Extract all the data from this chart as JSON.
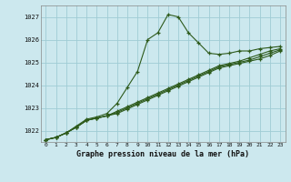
{
  "title": "Graphe pression niveau de la mer (hPa)",
  "bg_color": "#cce8ee",
  "line_color": "#2d5a1b",
  "grid_color": "#9fccd4",
  "ylim": [
    1021.5,
    1027.5
  ],
  "xlim": [
    -0.5,
    23.5
  ],
  "xtick_labels": [
    "0",
    "1",
    "2",
    "3",
    "4",
    "5",
    "6",
    "7",
    "8",
    "9",
    "10",
    "11",
    "12",
    "13",
    "14",
    "15",
    "16",
    "17",
    "18",
    "19",
    "20",
    "21",
    "22",
    "23"
  ],
  "ytick_labels": [
    "1022",
    "1023",
    "1024",
    "1025",
    "1026",
    "1027"
  ],
  "ytick_vals": [
    1022,
    1023,
    1024,
    1025,
    1026,
    1027
  ],
  "series": [
    [
      1021.6,
      1021.7,
      1021.9,
      1022.2,
      1022.5,
      1022.6,
      1022.75,
      1023.2,
      1023.9,
      1024.6,
      1026.0,
      1026.3,
      1027.1,
      1027.0,
      1026.3,
      1025.85,
      1025.4,
      1025.35,
      1025.4,
      1025.5,
      1025.5,
      1025.6,
      1025.65,
      1025.7
    ],
    [
      1021.6,
      1021.7,
      1021.9,
      1022.15,
      1022.45,
      1022.55,
      1022.65,
      1022.85,
      1023.05,
      1023.25,
      1023.45,
      1023.65,
      1023.85,
      1024.05,
      1024.25,
      1024.45,
      1024.65,
      1024.85,
      1024.95,
      1025.05,
      1025.2,
      1025.35,
      1025.5,
      1025.6
    ],
    [
      1021.6,
      1021.7,
      1021.9,
      1022.15,
      1022.45,
      1022.55,
      1022.65,
      1022.8,
      1023.0,
      1023.2,
      1023.4,
      1023.6,
      1023.8,
      1024.0,
      1024.2,
      1024.4,
      1024.6,
      1024.8,
      1024.9,
      1025.0,
      1025.1,
      1025.25,
      1025.4,
      1025.55
    ],
    [
      1021.6,
      1021.7,
      1021.9,
      1022.15,
      1022.45,
      1022.55,
      1022.65,
      1022.75,
      1022.95,
      1023.15,
      1023.35,
      1023.55,
      1023.75,
      1023.95,
      1024.15,
      1024.35,
      1024.55,
      1024.75,
      1024.85,
      1024.95,
      1025.05,
      1025.15,
      1025.3,
      1025.5
    ]
  ]
}
